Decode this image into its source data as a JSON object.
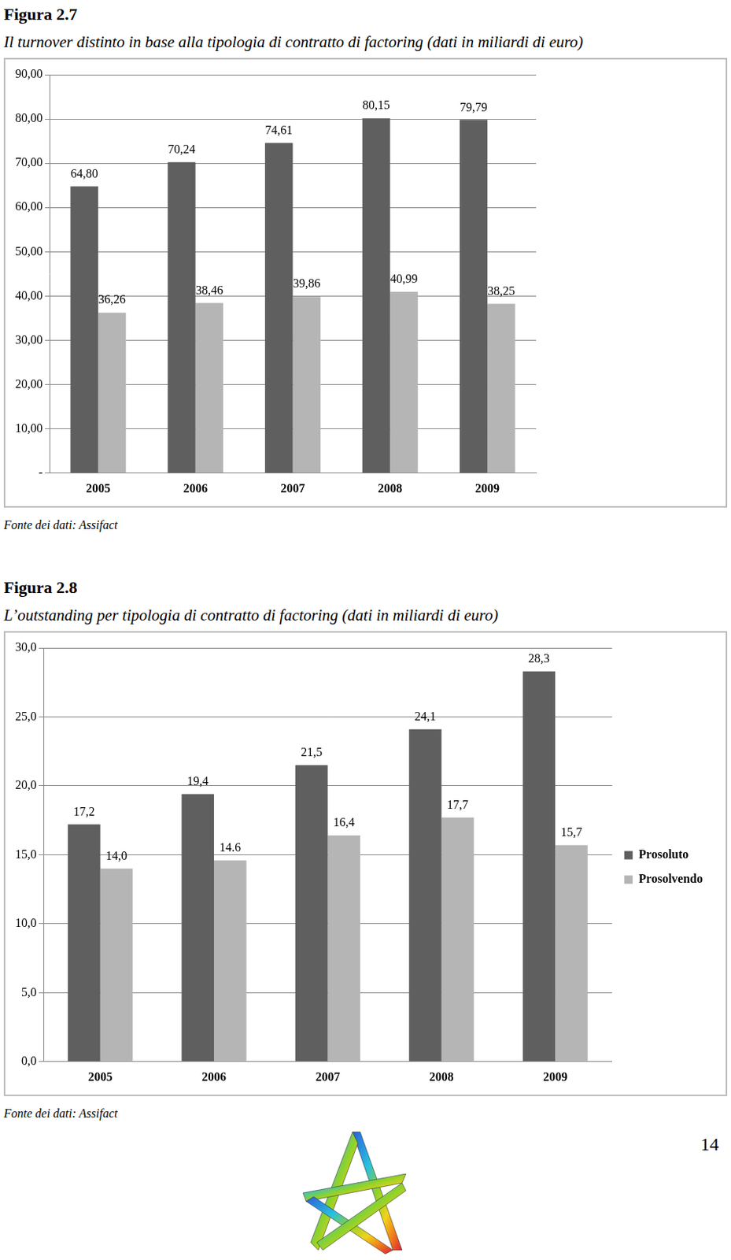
{
  "chart_data": [
    {
      "type": "bar",
      "title": "Il turnover distinto in base alla tipologia di contratto di factoring (dati in miliardi di euro)",
      "categories": [
        "2005",
        "2006",
        "2007",
        "2008",
        "2009"
      ],
      "series": [
        {
          "name": "Prosoluto",
          "color": "#5f5f5f",
          "values": [
            64.8,
            70.24,
            74.61,
            80.15,
            79.79
          ],
          "value_labels": [
            "64,80",
            "70,24",
            "74,61",
            "80,15",
            "79,79"
          ]
        },
        {
          "name": "Prosolvendo",
          "color": "#b5b5b5",
          "values": [
            36.26,
            38.46,
            39.86,
            40.99,
            38.25
          ],
          "value_labels": [
            "36,26",
            "38,46",
            "39,86",
            "40,99",
            "38,25"
          ]
        }
      ],
      "ylim": [
        0,
        90
      ],
      "yticks": [
        {
          "value": 0,
          "label": "-"
        },
        {
          "value": 10,
          "label": "10,00"
        },
        {
          "value": 20,
          "label": "20,00"
        },
        {
          "value": 30,
          "label": "30,00"
        },
        {
          "value": 40,
          "label": "40,00"
        },
        {
          "value": 50,
          "label": "50,00"
        },
        {
          "value": 60,
          "label": "60,00"
        },
        {
          "value": 70,
          "label": "70,00"
        },
        {
          "value": 80,
          "label": "80,00"
        },
        {
          "value": 90,
          "label": "90,00"
        }
      ],
      "grid": true,
      "legend": "right",
      "data_labels": true
    },
    {
      "type": "bar",
      "title": "L’outstanding per tipologia di contratto di factoring (dati in miliardi di euro)",
      "categories": [
        "2005",
        "2006",
        "2007",
        "2008",
        "2009"
      ],
      "series": [
        {
          "name": "Prosoluto",
          "color": "#5f5f5f",
          "values": [
            17.2,
            19.4,
            21.5,
            24.1,
            28.3
          ],
          "value_labels": [
            "17,2",
            "19,4",
            "21,5",
            "24,1",
            "28,3"
          ]
        },
        {
          "name": "Prosolvendo",
          "color": "#b5b5b5",
          "values": [
            14.0,
            14.6,
            16.4,
            17.7,
            15.7
          ],
          "value_labels": [
            "14,0",
            "14.6",
            "16,4",
            "17,7",
            "15,7"
          ]
        }
      ],
      "ylim": [
        0,
        30
      ],
      "yticks": [
        {
          "value": 0,
          "label": "0,0"
        },
        {
          "value": 5,
          "label": "5,0"
        },
        {
          "value": 10,
          "label": "10,0"
        },
        {
          "value": 15,
          "label": "15,0"
        },
        {
          "value": 20,
          "label": "20,0"
        },
        {
          "value": 25,
          "label": "25,0"
        },
        {
          "value": 30,
          "label": "30,0"
        }
      ],
      "grid": true,
      "legend": "right",
      "data_labels": true
    }
  ],
  "document": {
    "figures": [
      {
        "label": "Figura 2.7",
        "source": "Fonte dei dati: Assifact"
      },
      {
        "label": "Figura 2.8",
        "source": "Fonte dei dati: Assifact"
      }
    ],
    "page_number": "14"
  }
}
